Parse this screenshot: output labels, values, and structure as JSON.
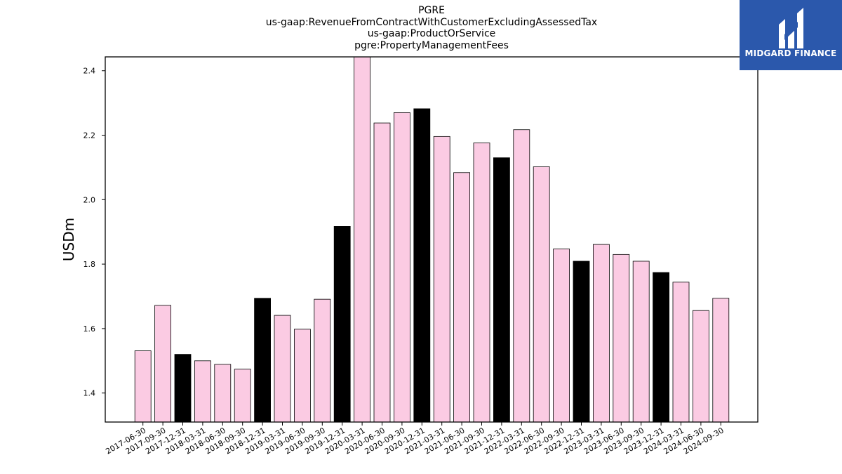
{
  "title_lines": [
    "PGRE",
    "us-gaap:RevenueFromContractWithCustomerExcludingAssessedTax",
    "us-gaap:ProductOrService",
    "pgre:PropertyManagementFees"
  ],
  "logo": {
    "text": "MIDGARD FINANCE",
    "background": "#2b58ac"
  },
  "chart_data": {
    "type": "bar",
    "title": "PGRE\nus-gaap:RevenueFromContractWithCustomerExcludingAssessedTax\nus-gaap:ProductOrService\npgre:PropertyManagementFees",
    "xlabel": "",
    "ylabel": "USDm",
    "ylim": [
      1.31,
      2.443
    ],
    "yticks": [
      1.4,
      1.6,
      1.8,
      2.0,
      2.2,
      2.4
    ],
    "ytick_labels": [
      "1.4",
      "1.6",
      "1.8",
      "2.0",
      "2.2",
      "2.4"
    ],
    "grid": false,
    "categories": [
      "2017-06-30",
      "2017-09-30",
      "2017-12-31",
      "2018-03-31",
      "2018-06-30",
      "2018-09-30",
      "2018-12-31",
      "2019-03-31",
      "2019-06-30",
      "2019-09-30",
      "2019-12-31",
      "2020-03-31",
      "2020-06-30",
      "2020-09-30",
      "2020-12-31",
      "2021-03-31",
      "2021-06-30",
      "2021-09-30",
      "2021-12-31",
      "2022-03-31",
      "2022-06-30",
      "2022-09-30",
      "2022-12-31",
      "2023-03-31",
      "2023-06-30",
      "2023-09-30",
      "2023-12-31",
      "2024-03-31",
      "2024-06-30",
      "2024-09-30"
    ],
    "values": [
      1.531,
      1.672,
      1.52,
      1.5,
      1.489,
      1.474,
      1.694,
      1.641,
      1.598,
      1.691,
      1.917,
      2.46,
      2.238,
      2.27,
      2.282,
      2.196,
      2.084,
      2.176,
      2.13,
      2.217,
      2.102,
      1.847,
      1.809,
      1.861,
      1.83,
      1.809,
      1.774,
      1.744,
      1.656,
      1.694
    ],
    "colors": {
      "quarter": "#fbcbe3",
      "year_end": "#000000",
      "edge": "#000000"
    }
  }
}
